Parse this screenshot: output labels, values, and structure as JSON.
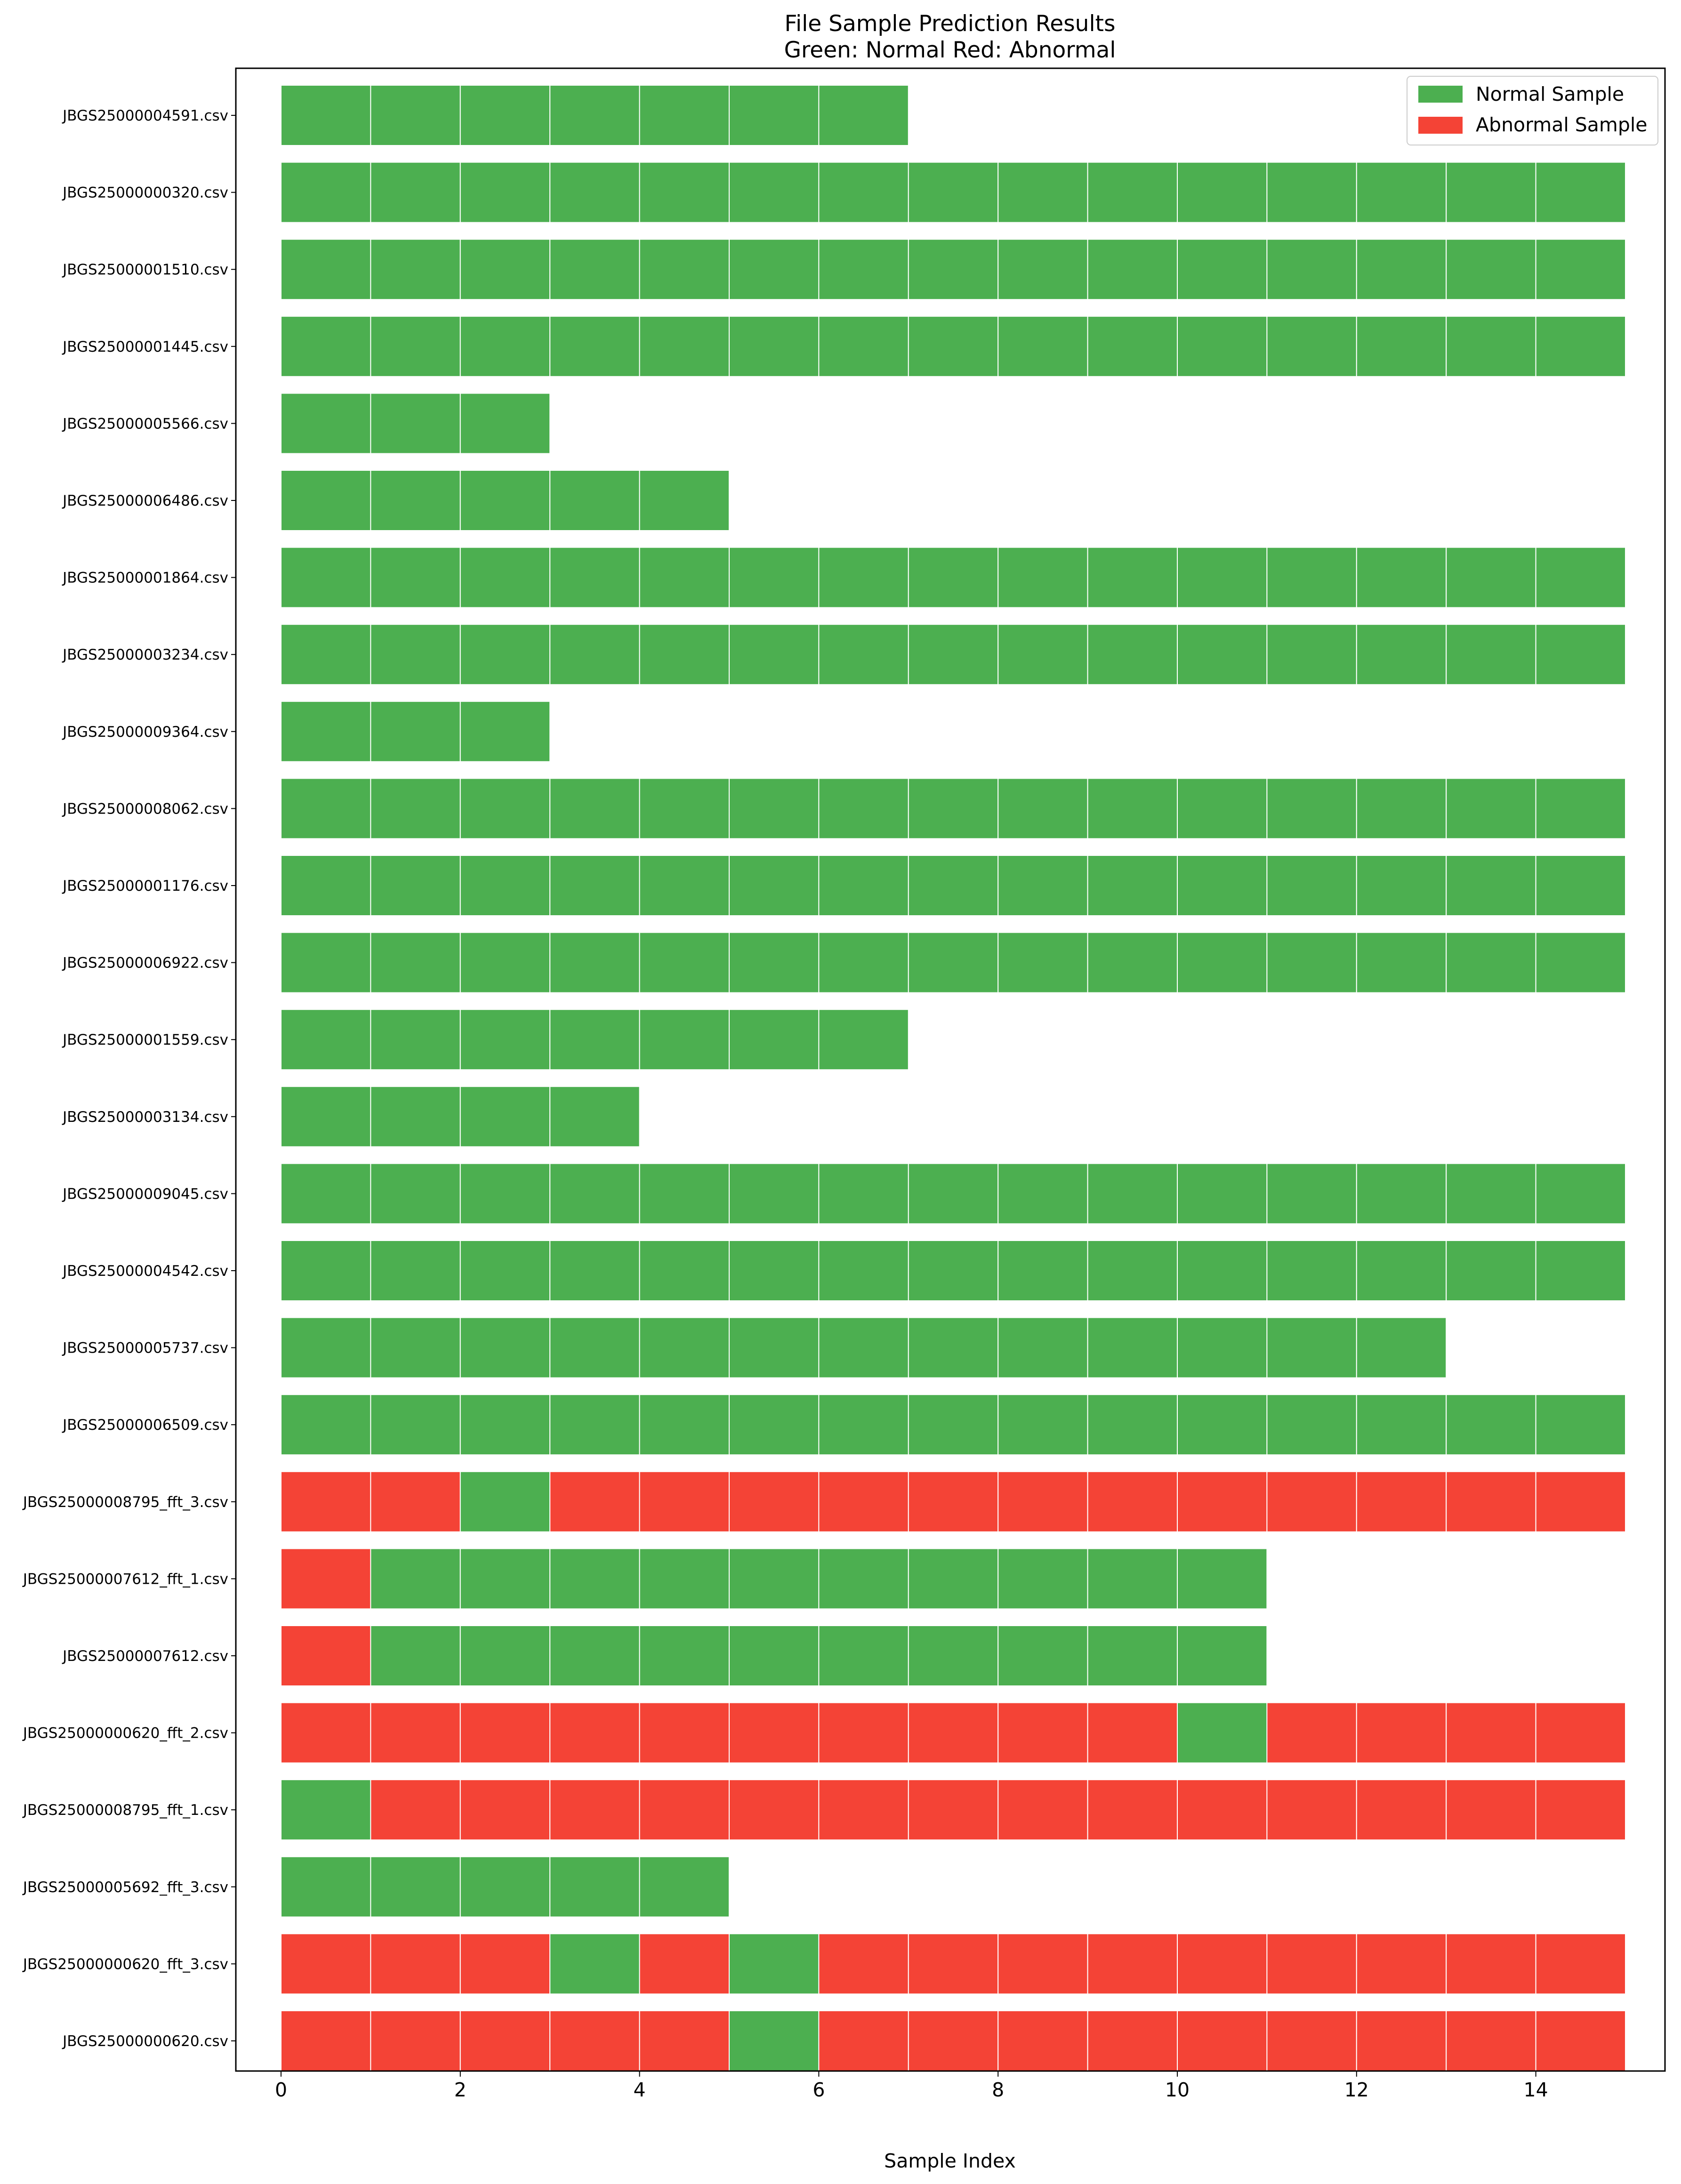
{
  "chart_data": {
    "type": "bar",
    "orientation": "horizontal",
    "title": "File Sample Prediction Results",
    "subtitle": "Green: Normal  Red: Abnormal",
    "xlabel": "Sample Index",
    "ylabel": "",
    "xlim": [
      -0.5,
      15.5
    ],
    "xticks": [
      0,
      2,
      4,
      6,
      8,
      10,
      12,
      14
    ],
    "grid": false,
    "legend_position": "top-right",
    "legend": [
      {
        "label": "Normal Sample",
        "color": "#4caf50"
      },
      {
        "label": "Abnormal Sample",
        "color": "#f44336"
      }
    ],
    "colors": {
      "normal": "#4caf50",
      "abnormal": "#f44336"
    },
    "files": [
      {
        "name": "JBGS25000004591.csv",
        "samples": "NNNNNNN"
      },
      {
        "name": "JBGS25000000320.csv",
        "samples": "NNNNNNNNNNNNNNN"
      },
      {
        "name": "JBGS25000001510.csv",
        "samples": "NNNNNNNNNNNNNNN"
      },
      {
        "name": "JBGS25000001445.csv",
        "samples": "NNNNNNNNNNNNNNN"
      },
      {
        "name": "JBGS25000005566.csv",
        "samples": "NNN"
      },
      {
        "name": "JBGS25000006486.csv",
        "samples": "NNNNN"
      },
      {
        "name": "JBGS25000001864.csv",
        "samples": "NNNNNNNNNNNNNNN"
      },
      {
        "name": "JBGS25000003234.csv",
        "samples": "NNNNNNNNNNNNNNN"
      },
      {
        "name": "JBGS25000009364.csv",
        "samples": "NNN"
      },
      {
        "name": "JBGS25000008062.csv",
        "samples": "NNNNNNNNNNNNNNN"
      },
      {
        "name": "JBGS25000001176.csv",
        "samples": "NNNNNNNNNNNNNNN"
      },
      {
        "name": "JBGS25000006922.csv",
        "samples": "NNNNNNNNNNNNNNN"
      },
      {
        "name": "JBGS25000001559.csv",
        "samples": "NNNNNNN"
      },
      {
        "name": "JBGS25000003134.csv",
        "samples": "NNNN"
      },
      {
        "name": "JBGS25000009045.csv",
        "samples": "NNNNNNNNNNNNNNN"
      },
      {
        "name": "JBGS25000004542.csv",
        "samples": "NNNNNNNNNNNNNNN"
      },
      {
        "name": "JBGS25000005737.csv",
        "samples": "NNNNNNNNNNNNN"
      },
      {
        "name": "JBGS25000006509.csv",
        "samples": "NNNNNNNNNNNNNNN"
      },
      {
        "name": "JBGS25000008795_fft_3.csv",
        "samples": "AANAAAAAAAAAAAA"
      },
      {
        "name": "JBGS25000007612_fft_1.csv",
        "samples": "ANNNNNNNNNN"
      },
      {
        "name": "JBGS25000007612.csv",
        "samples": "ANNNNNNNNNN"
      },
      {
        "name": "JBGS25000000620_fft_2.csv",
        "samples": "AAAAAAAAAANAAAA"
      },
      {
        "name": "JBGS25000008795_fft_1.csv",
        "samples": "NAAAAAAAAAAAAAA"
      },
      {
        "name": "JBGS25000005692_fft_3.csv",
        "samples": "NNNNN"
      },
      {
        "name": "JBGS25000000620_fft_3.csv",
        "samples": "AAANANAAAAAAAAA"
      },
      {
        "name": "JBGS25000000620.csv",
        "samples": "AAAAANAAAAAAAAA"
      }
    ]
  }
}
